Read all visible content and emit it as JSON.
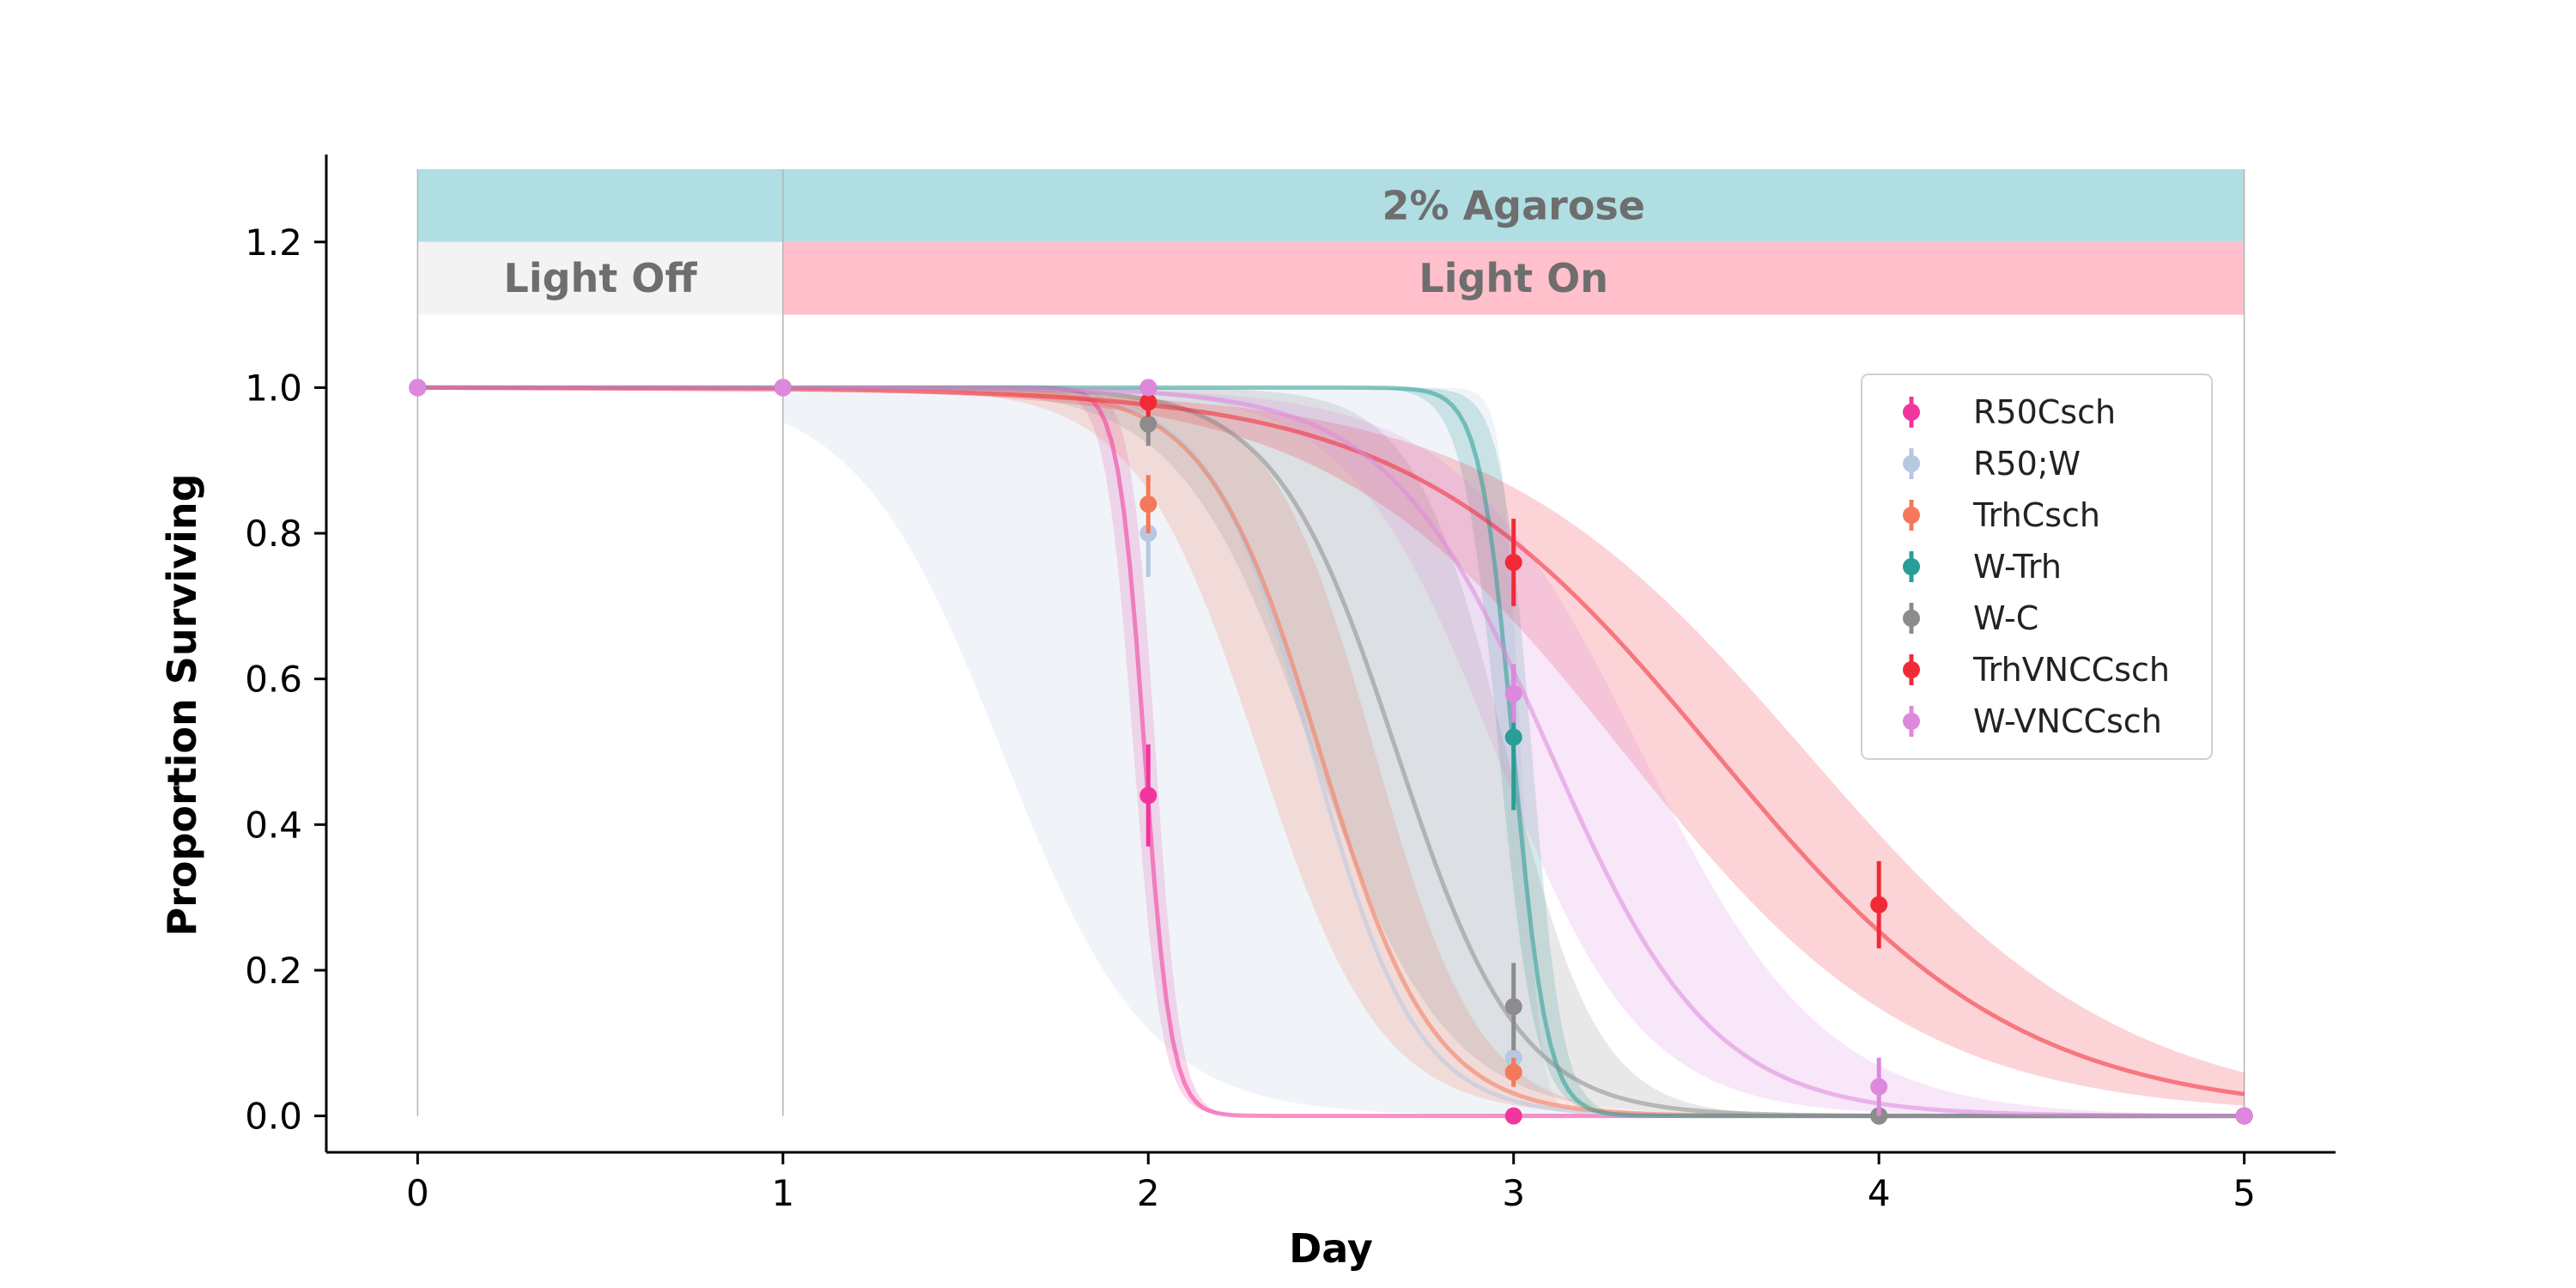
{
  "chart_data": {
    "type": "line",
    "xlabel": "Day",
    "ylabel": "Proportion Surviving",
    "xlim": [
      -0.25,
      5.25
    ],
    "ylim": [
      -0.05,
      1.32
    ],
    "x_ticks": [
      "0",
      "1",
      "2",
      "3",
      "4",
      "5"
    ],
    "y_ticks": [
      "0.0",
      "0.2",
      "0.4",
      "0.6",
      "0.8",
      "1.0",
      "1.2"
    ],
    "grid": false,
    "legend_position": "upper-right",
    "annotations": [
      {
        "text": "2% Agarose",
        "x_start": 0,
        "x_end": 5,
        "y_bottom": 1.2,
        "y_top": 1.3,
        "color": "#b0dee3",
        "label_x_start": 1
      },
      {
        "text": "Light Off",
        "x_start": 0,
        "x_end": 1,
        "y_bottom": 1.1,
        "y_top": 1.2,
        "color": "#f3f3f3"
      },
      {
        "text": "Light On",
        "x_start": 1,
        "x_end": 5,
        "y_bottom": 1.1,
        "y_top": 1.2,
        "color": "#ffc0cb"
      }
    ],
    "series": [
      {
        "name": "R50Csch",
        "color": "#f2359d",
        "points": [
          {
            "x": 0,
            "y": 1.0,
            "err": 0
          },
          {
            "x": 1,
            "y": 1.0,
            "err": 0
          },
          {
            "x": 2,
            "y": 0.44,
            "err": 0.07
          },
          {
            "x": 3,
            "y": 0.0,
            "err": 0
          },
          {
            "x": 4,
            "y": 0.0,
            "err": 0
          },
          {
            "x": 5,
            "y": 0.0,
            "err": 0
          }
        ],
        "curve": {
          "midpoint": 1.99,
          "slope": 28,
          "band_low": {
            "midpoint": 1.96,
            "slope": 26
          },
          "band_high": {
            "midpoint": 2.02,
            "slope": 30
          }
        }
      },
      {
        "name": "R50;W",
        "color": "#b6c8e2",
        "points": [
          {
            "x": 0,
            "y": 1.0,
            "err": 0
          },
          {
            "x": 1,
            "y": 1.0,
            "err": 0
          },
          {
            "x": 2,
            "y": 0.8,
            "err": 0.06
          },
          {
            "x": 3,
            "y": 0.08,
            "err": 0.04
          },
          {
            "x": 4,
            "y": 0.0,
            "err": 0
          },
          {
            "x": 5,
            "y": 0.0,
            "err": 0
          }
        ],
        "curve": {
          "midpoint": 2.45,
          "slope": 7,
          "band_low": {
            "midpoint": 1.6,
            "slope": 5
          },
          "band_high": {
            "midpoint": 3.02,
            "slope": 40
          }
        }
      },
      {
        "name": "TrhCsch",
        "color": "#f4795a",
        "points": [
          {
            "x": 0,
            "y": 1.0,
            "err": 0
          },
          {
            "x": 1,
            "y": 1.0,
            "err": 0
          },
          {
            "x": 2,
            "y": 0.84,
            "err": 0.04
          },
          {
            "x": 3,
            "y": 0.06,
            "err": 0.02
          },
          {
            "x": 4,
            "y": 0.0,
            "err": 0
          },
          {
            "x": 5,
            "y": 0.0,
            "err": 0
          }
        ],
        "curve": {
          "midpoint": 2.47,
          "slope": 6.5,
          "band_low": {
            "midpoint": 2.3,
            "slope": 6
          },
          "band_high": {
            "midpoint": 2.62,
            "slope": 7
          }
        }
      },
      {
        "name": "W-Trh",
        "color": "#2a9d95",
        "points": [
          {
            "x": 0,
            "y": 1.0,
            "err": 0
          },
          {
            "x": 1,
            "y": 1.0,
            "err": 0
          },
          {
            "x": 2,
            "y": 1.0,
            "err": 0
          },
          {
            "x": 3,
            "y": 0.52,
            "err": 0.1
          },
          {
            "x": 4,
            "y": 0.0,
            "err": 0
          },
          {
            "x": 5,
            "y": 0.0,
            "err": 0
          }
        ],
        "curve": {
          "midpoint": 3.0,
          "slope": 22,
          "band_low": {
            "midpoint": 2.96,
            "slope": 20
          },
          "band_high": {
            "midpoint": 3.05,
            "slope": 24
          }
        }
      },
      {
        "name": "W-C",
        "color": "#8c8c8c",
        "points": [
          {
            "x": 0,
            "y": 1.0,
            "err": 0
          },
          {
            "x": 1,
            "y": 1.0,
            "err": 0
          },
          {
            "x": 2,
            "y": 0.95,
            "err": 0.03
          },
          {
            "x": 3,
            "y": 0.15,
            "err": 0.06
          },
          {
            "x": 4,
            "y": 0.0,
            "err": 0
          },
          {
            "x": 5,
            "y": 0.0,
            "err": 0
          }
        ],
        "curve": {
          "midpoint": 2.68,
          "slope": 6,
          "band_low": {
            "midpoint": 2.45,
            "slope": 5.5
          },
          "band_high": {
            "midpoint": 2.98,
            "slope": 8
          }
        }
      },
      {
        "name": "TrhVNCCsch",
        "color": "#f22a36",
        "points": [
          {
            "x": 0,
            "y": 1.0,
            "err": 0
          },
          {
            "x": 1,
            "y": 1.0,
            "err": 0
          },
          {
            "x": 2,
            "y": 0.98,
            "err": 0.02
          },
          {
            "x": 3,
            "y": 0.76,
            "err": 0.06
          },
          {
            "x": 4,
            "y": 0.29,
            "err": 0.06
          },
          {
            "x": 5,
            "y": 0.0,
            "err": 0
          }
        ],
        "curve": {
          "midpoint": 3.55,
          "slope": 2.4,
          "band_low": {
            "midpoint": 3.3,
            "slope": 2.5
          },
          "band_high": {
            "midpoint": 3.8,
            "slope": 2.3
          }
        }
      },
      {
        "name": "W-VNCCsch",
        "color": "#dd88dd",
        "points": [
          {
            "x": 0,
            "y": 1.0,
            "err": 0
          },
          {
            "x": 1,
            "y": 1.0,
            "err": 0
          },
          {
            "x": 2,
            "y": 1.0,
            "err": 0
          },
          {
            "x": 3,
            "y": 0.58,
            "err": 0.04
          },
          {
            "x": 4,
            "y": 0.04,
            "err": 0.04
          },
          {
            "x": 5,
            "y": 0.0,
            "err": 0
          }
        ],
        "curve": {
          "midpoint": 3.1,
          "slope": 4.5,
          "band_low": {
            "midpoint": 2.95,
            "slope": 5
          },
          "band_high": {
            "midpoint": 3.35,
            "slope": 4
          }
        }
      }
    ]
  }
}
